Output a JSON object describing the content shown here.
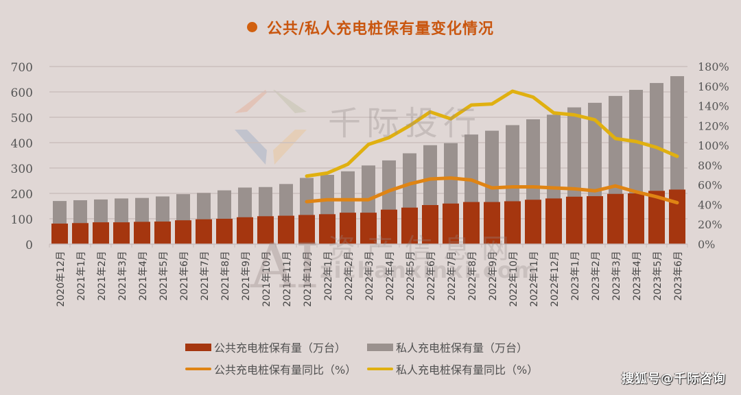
{
  "header": {
    "title": "公共/私人充电桩保有量变化情况",
    "bullet_color": "#d1600f"
  },
  "watermarks": {
    "brand": "千际投行",
    "ai_logo": "AI",
    "site_cn": "资产信息网",
    "site_url": "zichanxinxi.com"
  },
  "footer": {
    "source": "搜狐号@千际咨询"
  },
  "legend": [
    {
      "label": "公共充电桩保有量（万台）",
      "type": "bar",
      "color": "#a5360f"
    },
    {
      "label": "私人充电桩保有量（万台）",
      "type": "bar",
      "color": "#9a918e"
    },
    {
      "label": "公共充电桩保有量同比（%）",
      "type": "line",
      "color": "#df8414"
    },
    {
      "label": "私人充电桩保有量同比（%）",
      "type": "line",
      "color": "#e0b010"
    }
  ],
  "chart_data": {
    "type": "bar+line",
    "title": "公共/私人充电桩保有量变化情况",
    "categories": [
      "2020年12月",
      "2021年1月",
      "2021年2月",
      "2021年3月",
      "2021年4月",
      "2021年5月",
      "2021年6月",
      "2021年7月",
      "2021年8月",
      "2021年9月",
      "2021年10月",
      "2021年11月",
      "2021年12月",
      "2022年1月",
      "2022年2月",
      "2022年3月",
      "2022年4月",
      "2022年5月",
      "2022年6月",
      "2022年7月",
      "2022年8月",
      "2022年9月",
      "2022年10月",
      "2022年11月",
      "2022年12月",
      "2023年1月",
      "2023年2月",
      "2023年3月",
      "2023年4月",
      "2023年5月",
      "2023年6月"
    ],
    "series": [
      {
        "name": "公共充电桩保有量（万台）",
        "type": "bar",
        "axis": "left",
        "color": "#a5360f",
        "values": [
          81,
          83,
          86,
          86,
          88,
          89,
          94,
          98,
          100,
          106,
          110,
          112,
          115,
          118,
          124,
          124,
          136,
          144,
          154,
          160,
          166,
          166,
          169,
          175,
          180,
          187,
          189,
          198,
          200,
          210,
          215
        ]
      },
      {
        "name": "私人充电桩保有量（万台）",
        "type": "bar",
        "axis": "left",
        "color": "#9a918e",
        "values": [
          170,
          173,
          176,
          180,
          182,
          188,
          197,
          202,
          212,
          223,
          225,
          237,
          261,
          273,
          287,
          310,
          330,
          358,
          390,
          398,
          432,
          447,
          469,
          492,
          510,
          539,
          557,
          584,
          608,
          635,
          662
        ]
      },
      {
        "name": "公共充电桩保有量同比（%）",
        "type": "line",
        "axis": "right",
        "color": "#df8414",
        "values": [
          null,
          null,
          null,
          null,
          null,
          null,
          null,
          null,
          null,
          null,
          null,
          null,
          43,
          45,
          45,
          45,
          54,
          61,
          66,
          67,
          65,
          57,
          58,
          58,
          57,
          56,
          54,
          59,
          53,
          48,
          42
        ]
      },
      {
        "name": "私人充电桩保有量同比（%）",
        "type": "line",
        "axis": "right",
        "color": "#e0b010",
        "values": [
          null,
          null,
          null,
          null,
          null,
          null,
          null,
          null,
          null,
          null,
          null,
          null,
          69,
          72,
          81,
          101,
          108,
          120,
          134,
          127,
          141,
          142,
          155,
          149,
          133,
          131,
          126,
          107,
          104,
          98,
          89
        ]
      }
    ],
    "y_left": {
      "ticks": [
        0,
        100,
        200,
        300,
        400,
        500,
        600,
        700
      ],
      "range": [
        0,
        700
      ],
      "label": ""
    },
    "y_right": {
      "ticks": [
        "0%",
        "20%",
        "40%",
        "60%",
        "80%",
        "100%",
        "120%",
        "140%",
        "160%",
        "180%"
      ],
      "range": [
        0,
        180
      ],
      "label": ""
    },
    "xlabel": "",
    "grid": true,
    "legend_position": "bottom"
  }
}
